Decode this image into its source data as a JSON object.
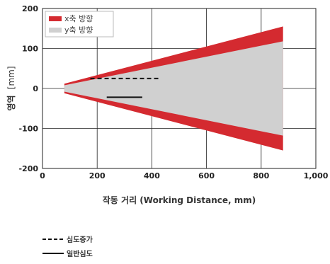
{
  "chart_data": {
    "type": "area",
    "xlabel": "작동 거리 (Working Distance, mm)",
    "ylabel_main": "영역",
    "ylabel_unit": "[mm]",
    "xlim": [
      0,
      1000
    ],
    "ylim": [
      -200,
      200
    ],
    "x_ticks": [
      0,
      200,
      400,
      600,
      800,
      1000
    ],
    "x_tick_labels": [
      "0",
      "200",
      "400",
      "600",
      "800",
      "1,000"
    ],
    "y_ticks": [
      200,
      100,
      0,
      -100,
      -200
    ],
    "y_tick_labels": [
      "200",
      "100",
      "0",
      "-100",
      "-200"
    ],
    "grid": true,
    "legend_position": "top-left",
    "series": [
      {
        "name": "x축 방향",
        "color": "#d42a30",
        "x": [
          80,
          880
        ],
        "upper": [
          12,
          155
        ],
        "lower": [
          -12,
          -155
        ]
      },
      {
        "name": "y축 방향",
        "color": "#d0d0d0",
        "x": [
          80,
          880
        ],
        "upper": [
          8,
          118
        ],
        "lower": [
          -8,
          -118
        ]
      }
    ],
    "annotation_lines": [
      {
        "label": "심도증가",
        "style": "dashed",
        "x": [
          175,
          425
        ],
        "y": 25
      },
      {
        "label": "일반심도",
        "style": "solid",
        "x": [
          235,
          365
        ],
        "y": -22
      }
    ]
  }
}
